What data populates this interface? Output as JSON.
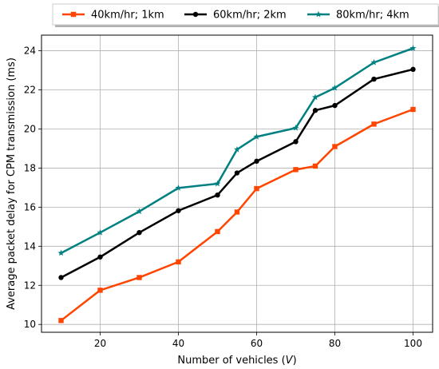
{
  "chart_data": {
    "type": "line",
    "x": [
      10,
      20,
      30,
      40,
      50,
      55,
      60,
      70,
      75,
      80,
      90,
      100
    ],
    "xlabel_prefix": "Number of vehicles (",
    "xlabel_var": "V",
    "xlabel_suffix": ")",
    "ylabel": "Average packet delay for CPM transmission (ms)",
    "xlim": [
      5,
      105
    ],
    "ylim": [
      9.6,
      24.8
    ],
    "xticks": [
      20,
      40,
      60,
      80,
      100
    ],
    "yticks": [
      10,
      12,
      14,
      16,
      18,
      20,
      22,
      24
    ],
    "grid": true,
    "legend_position": "top",
    "series": [
      {
        "name": "40km/hr; 1km",
        "color": "#ff4500",
        "marker": "square",
        "values": [
          10.2,
          11.75,
          12.4,
          13.2,
          14.75,
          15.75,
          16.95,
          17.92,
          18.1,
          19.1,
          20.25,
          21.0
        ]
      },
      {
        "name": "60km/hr; 2km",
        "color": "#000000",
        "marker": "circle",
        "values": [
          12.4,
          13.45,
          14.7,
          15.82,
          16.62,
          17.75,
          18.35,
          19.35,
          20.95,
          21.2,
          22.55,
          23.05
        ]
      },
      {
        "name": "80km/hr; 4km",
        "color": "#008080",
        "marker": "star",
        "values": [
          13.65,
          14.7,
          15.78,
          16.98,
          17.2,
          18.95,
          19.6,
          20.05,
          21.62,
          22.1,
          23.4,
          24.13
        ]
      }
    ]
  }
}
